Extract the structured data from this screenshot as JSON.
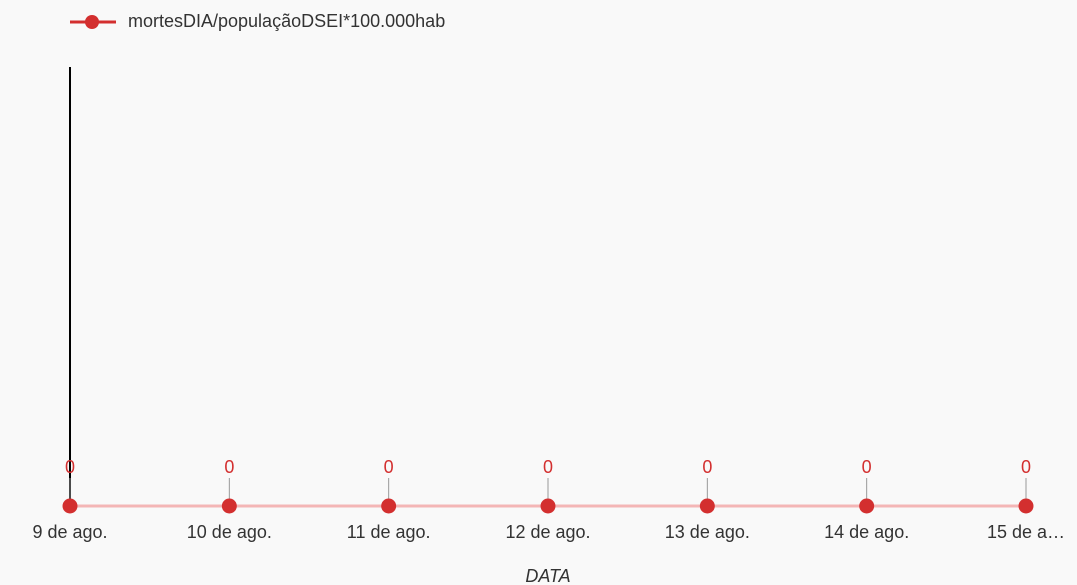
{
  "chart_data": {
    "type": "line",
    "x_label": "DATA",
    "categories": [
      "9 de ago.",
      "10 de ago.",
      "11 de ago.",
      "12 de ago.",
      "13 de ago.",
      "14 de ago.",
      "15 de a…"
    ],
    "series": [
      {
        "name": "mortesDIA/populaçãoDSEI*100.000hab",
        "color": "#d32f2f",
        "values": [
          0,
          0,
          0,
          0,
          0,
          0,
          0
        ]
      }
    ],
    "ylim": [
      0,
      1
    ],
    "legend": "top-left"
  }
}
